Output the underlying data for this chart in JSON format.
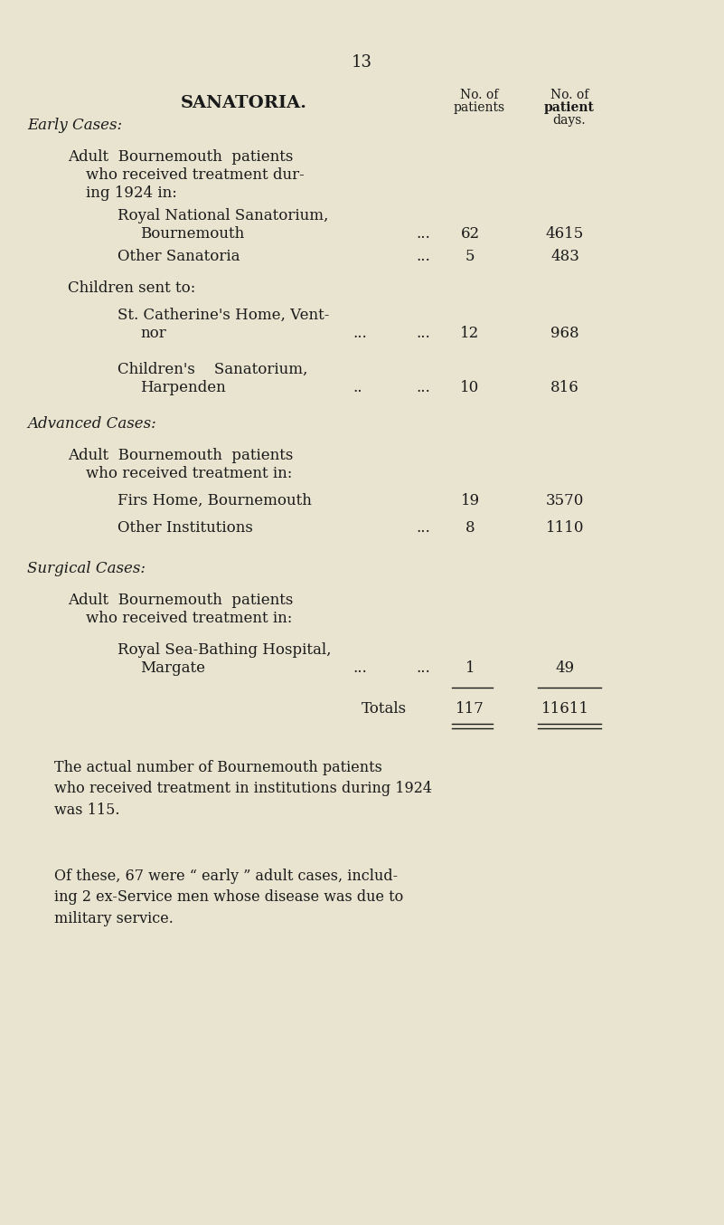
{
  "bg_color": "#e8e4d0",
  "text_color": "#1a1a1a",
  "page_number": "13",
  "title": "SANATORIA.",
  "col1_header_line1": "No. of",
  "col1_header_line2": "patients",
  "col2_header_line1": "No. of",
  "col2_header_line2": "patient",
  "col2_header_line3": "days.",
  "early_cases_label": "Early Cases:",
  "advanced_cases_label": "Advanced Cases:",
  "surgical_cases_label": "Surgical Cases:",
  "rows": [
    {
      "indent": 0,
      "text": "Adult  Bournemouth  patients\nwho received treatment dur-\ning 1924 in:",
      "num1": null,
      "num2": null,
      "style": "normal"
    },
    {
      "indent": 1,
      "text": "Royal National Sanatorium,\n    Bournemouth",
      "dots": "...",
      "num1": "62",
      "num2": "4615",
      "style": "normal"
    },
    {
      "indent": 1,
      "text": "Other Sanatoria",
      "dots": "...",
      "num1": "5",
      "num2": "483",
      "style": "normal"
    },
    {
      "indent": -1,
      "text": "Children sent to:",
      "num1": null,
      "num2": null,
      "style": "normal"
    },
    {
      "indent": 1,
      "text": "St. Catherine's Home, Vent-\n        nor",
      "dots": "...         ...",
      "num1": "12",
      "num2": "968",
      "style": "normal"
    },
    {
      "indent": 1,
      "text": "Children's    Sanatorium,\n        Harpenden",
      "dots": "..          ...",
      "num1": "10",
      "num2": "816",
      "style": "normal"
    },
    {
      "indent": 0,
      "text": "Adult  Bournemouth  patients\nwho received treatment in:",
      "num1": null,
      "num2": null,
      "style": "normal"
    },
    {
      "indent": 1,
      "text": "Firs Home, Bournemouth",
      "dots": "",
      "num1": "19",
      "num2": "3570",
      "style": "normal"
    },
    {
      "indent": 1,
      "text": "Other Institutions",
      "dots": "...",
      "num1": "8",
      "num2": "1110",
      "style": "normal"
    },
    {
      "indent": 0,
      "text": "Adult  Bournemouth  patients\nwho received treatment in:",
      "num1": null,
      "num2": null,
      "style": "normal"
    },
    {
      "indent": 1,
      "text": "Royal Sea-Bathing Hospital,\n    Margate",
      "dots": "...         ...",
      "num1": "1",
      "num2": "49",
      "style": "normal"
    }
  ],
  "totals_label": "Totals",
  "totals_num1": "117",
  "totals_num2": "11611",
  "footer_text1": "The actual number of Bournemouth patients\nwho received treatment in institutions during 1924\nwas 115.",
  "footer_text2": "Of these, 67 were “ early ” adult cases, includ-\ning 2 ex-Service men whose disease was due to\nmilitary service."
}
